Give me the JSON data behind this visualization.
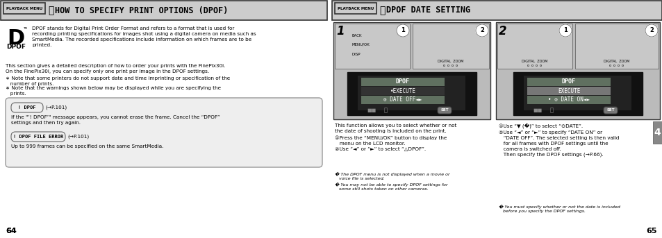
{
  "bg_color": "#ffffff",
  "page_width": 9.54,
  "page_height": 3.43,
  "left_panel": {
    "title_box_label": "PLAYBACK MENU",
    "title_text": "HOW TO SPECIFY PRINT OPTIONS (DPOF)",
    "para1": "DPOF stands for Digital Print Order Format and refers to a format that is used for\nrecording printing specifications for images shot using a digital camera on media such as\nSmartMedia. The recorded specifications include information on which frames are to be\nprinted.",
    "para2": "This section gives a detailed description of how to order your prints with the FinePix30i.\nOn the FinePix30i, you can specify only one print per image in the DPOF settings.",
    "para3": "∗ Note that some printers do not support date and time imprinting or specification of the\n   number of prints.",
    "para4": "∗ Note that the warnings shown below may be displayed while you are specifying the\n   prints.",
    "box1_label": "! DPOF",
    "box1_ref": "(→P.101)",
    "box1_body": "If the \"’! DPOF’\" message appears, you cannot erase the frame. Cancel the “DPOF”\nsettings and then try again.",
    "box2_label": "! DPOF FILE ERROR",
    "box2_ref": "(→P.101)",
    "box2_body": "Up to 999 frames can be specified on the same SmartMedia.",
    "page_num": "64"
  },
  "right_panel": {
    "title_box_label": "PLAYBACK MENU",
    "title_text": "DPOF DATE SETTING",
    "desc": "This function allows you to select whether or not\nthe date of shooting is included on the print.",
    "s1": "①Press the “MENU/OK” button to display the\n   menu on the LCD monitor.",
    "s2": "②Use “◄” or “►” to select “△DPOF”.",
    "note1": "� The DPOF menu is not displayed when a movie or\n   voice file is selected.",
    "note2": "� You may not be able to specify DPOF settings for\n   some still shots taken on other cameras.",
    "sa": "①Use “▼ (�)” to select “⊙DATE”.",
    "sb": "②Use “◄” or “►” to specify “DATE ON” or\n   “DATE OFF”. The selected setting is then valid\n   for all frames with DPOF settings until the\n   camera is switched off.\n   Then specify the DPOF settings (→P.66).",
    "note3": "� You must specify whether or not the date is included\n   before you specify the DPOF settings.",
    "tab4": "4",
    "page_num": "65",
    "screen1_row1": "DPOF",
    "screen1_row2": "•EXECUTE",
    "screen1_row3": "⊙ DATE OFF◄►",
    "screen2_row1": "DPOF",
    "screen2_row2": "EXECUTE",
    "screen2_row3": "• ⊙ DATE ON◄►",
    "title_gray": "#d8d8d8",
    "screen_dark": "#2a2a2a",
    "row_blue1": "#5a7a5a",
    "row_blue2": "#4a5a4a",
    "row_selected": "#6a8a6a"
  }
}
